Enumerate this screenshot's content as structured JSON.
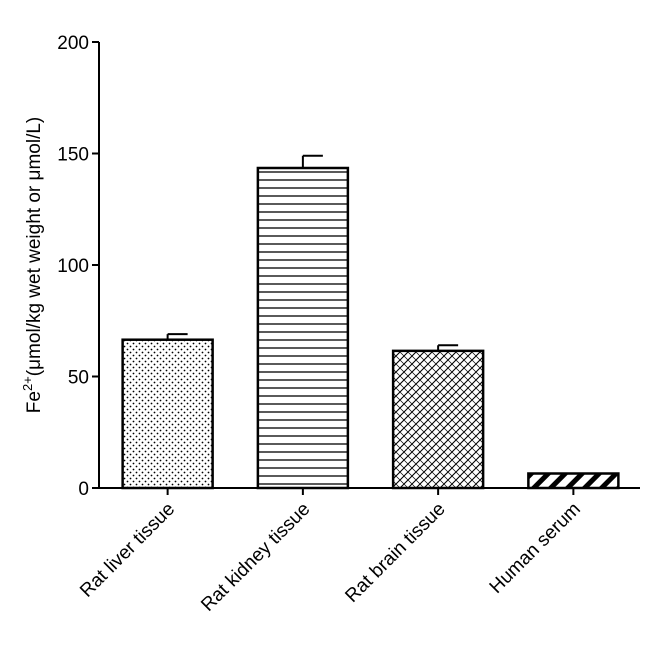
{
  "chart_data": {
    "type": "bar",
    "categories": [
      "Rat liver tissue",
      "Rat kidney tissue",
      "Rat brain tissue",
      "Human serum"
    ],
    "values": [
      66.5,
      143.5,
      61.5,
      6.5
    ],
    "errors": [
      2.5,
      5.5,
      2.5,
      0.3
    ],
    "patterns": [
      "dots",
      "horizontal-lines",
      "crosshatch",
      "diagonal-stripes"
    ],
    "ylabel": {
      "base": "Fe",
      "superscript": "2+",
      "rest": "(μmol/kg wet weight or μmol/L)"
    },
    "ylim": [
      0,
      200
    ],
    "yticks": [
      0,
      50,
      100,
      150,
      200
    ],
    "grid": false,
    "legend": "none"
  }
}
